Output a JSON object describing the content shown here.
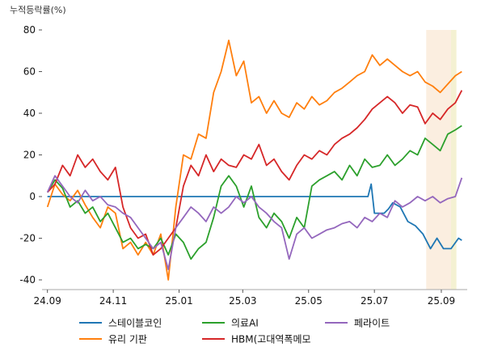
{
  "chart_data": {
    "type": "line",
    "ylabel": "누적등락률(%)",
    "ylim": [
      -45,
      80
    ],
    "yticks": [
      80,
      60,
      40,
      20,
      0,
      -20,
      -40
    ],
    "x_tick_labels": [
      "24.09",
      "24.11",
      "25.01",
      "25.03",
      "25.05",
      "25.07",
      "25.09"
    ],
    "x_tick_positions": [
      "2024-09-01",
      "2024-11-01",
      "2025-01-01",
      "2025-03-01",
      "2025-05-01",
      "2025-07-01",
      "2025-09-01"
    ],
    "xlim": [
      "2024-08-27",
      "2025-09-25"
    ],
    "shaded_regions": [
      {
        "start": "2025-08-18",
        "end": "2025-09-10",
        "color": "#fbeee0"
      },
      {
        "start": "2025-09-10",
        "end": "2025-09-15",
        "color": "#f4f1d2"
      }
    ],
    "grid": false,
    "legend_position": "bottom",
    "series": [
      {
        "name": "스테이블코인",
        "color": "#1f77b4",
        "points": [
          [
            "2024-09-01",
            0
          ],
          [
            "2024-11-01",
            0
          ],
          [
            "2025-01-01",
            0
          ],
          [
            "2025-03-01",
            0
          ],
          [
            "2025-05-01",
            0
          ],
          [
            "2025-06-25",
            0
          ],
          [
            "2025-06-28",
            6
          ],
          [
            "2025-07-01",
            -8
          ],
          [
            "2025-07-10",
            -8
          ],
          [
            "2025-07-14",
            -6
          ],
          [
            "2025-07-18",
            -3
          ],
          [
            "2025-07-25",
            -5
          ],
          [
            "2025-08-01",
            -12
          ],
          [
            "2025-08-08",
            -14
          ],
          [
            "2025-08-15",
            -18
          ],
          [
            "2025-08-22",
            -25
          ],
          [
            "2025-08-28",
            -20
          ],
          [
            "2025-09-03",
            -25
          ],
          [
            "2025-09-10",
            -25
          ],
          [
            "2025-09-17",
            -20
          ],
          [
            "2025-09-20",
            -21
          ]
        ]
      },
      {
        "name": "유리 기판",
        "color": "#ff7f0e",
        "points": [
          [
            "2024-09-01",
            -5
          ],
          [
            "2024-09-08",
            6
          ],
          [
            "2024-09-15",
            1
          ],
          [
            "2024-09-22",
            -2
          ],
          [
            "2024-09-29",
            3
          ],
          [
            "2024-10-06",
            -4
          ],
          [
            "2024-10-13",
            -10
          ],
          [
            "2024-10-20",
            -15
          ],
          [
            "2024-10-27",
            -5
          ],
          [
            "2024-11-03",
            -8
          ],
          [
            "2024-11-10",
            -25
          ],
          [
            "2024-11-17",
            -22
          ],
          [
            "2024-11-24",
            -28
          ],
          [
            "2024-12-01",
            -22
          ],
          [
            "2024-12-08",
            -28
          ],
          [
            "2024-12-15",
            -18
          ],
          [
            "2024-12-22",
            -40
          ],
          [
            "2024-12-29",
            -5
          ],
          [
            "2025-01-05",
            20
          ],
          [
            "2025-01-12",
            18
          ],
          [
            "2025-01-19",
            30
          ],
          [
            "2025-01-26",
            28
          ],
          [
            "2025-02-02",
            50
          ],
          [
            "2025-02-09",
            60
          ],
          [
            "2025-02-16",
            75
          ],
          [
            "2025-02-23",
            58
          ],
          [
            "2025-03-02",
            65
          ],
          [
            "2025-03-09",
            45
          ],
          [
            "2025-03-16",
            48
          ],
          [
            "2025-03-23",
            40
          ],
          [
            "2025-03-30",
            46
          ],
          [
            "2025-04-06",
            40
          ],
          [
            "2025-04-13",
            38
          ],
          [
            "2025-04-20",
            45
          ],
          [
            "2025-04-27",
            42
          ],
          [
            "2025-05-04",
            48
          ],
          [
            "2025-05-11",
            44
          ],
          [
            "2025-05-18",
            46
          ],
          [
            "2025-05-25",
            50
          ],
          [
            "2025-06-01",
            52
          ],
          [
            "2025-06-08",
            55
          ],
          [
            "2025-06-15",
            58
          ],
          [
            "2025-06-22",
            60
          ],
          [
            "2025-06-29",
            68
          ],
          [
            "2025-07-06",
            63
          ],
          [
            "2025-07-13",
            66
          ],
          [
            "2025-07-20",
            63
          ],
          [
            "2025-07-27",
            60
          ],
          [
            "2025-08-03",
            58
          ],
          [
            "2025-08-10",
            60
          ],
          [
            "2025-08-17",
            55
          ],
          [
            "2025-08-24",
            53
          ],
          [
            "2025-08-31",
            50
          ],
          [
            "2025-09-07",
            54
          ],
          [
            "2025-09-14",
            58
          ],
          [
            "2025-09-20",
            60
          ]
        ]
      },
      {
        "name": "의료AI",
        "color": "#2ca02c",
        "points": [
          [
            "2024-09-01",
            2
          ],
          [
            "2024-09-08",
            8
          ],
          [
            "2024-09-15",
            4
          ],
          [
            "2024-09-22",
            -5
          ],
          [
            "2024-09-29",
            -2
          ],
          [
            "2024-10-06",
            -8
          ],
          [
            "2024-10-13",
            -5
          ],
          [
            "2024-10-20",
            -12
          ],
          [
            "2024-10-27",
            -8
          ],
          [
            "2024-11-03",
            -15
          ],
          [
            "2024-11-10",
            -22
          ],
          [
            "2024-11-17",
            -20
          ],
          [
            "2024-11-24",
            -25
          ],
          [
            "2024-12-01",
            -23
          ],
          [
            "2024-12-08",
            -25
          ],
          [
            "2024-12-15",
            -20
          ],
          [
            "2024-12-22",
            -28
          ],
          [
            "2024-12-29",
            -18
          ],
          [
            "2025-01-05",
            -22
          ],
          [
            "2025-01-12",
            -30
          ],
          [
            "2025-01-19",
            -25
          ],
          [
            "2025-01-26",
            -22
          ],
          [
            "2025-02-02",
            -10
          ],
          [
            "2025-02-09",
            5
          ],
          [
            "2025-02-16",
            10
          ],
          [
            "2025-02-23",
            5
          ],
          [
            "2025-03-02",
            -5
          ],
          [
            "2025-03-09",
            5
          ],
          [
            "2025-03-16",
            -10
          ],
          [
            "2025-03-23",
            -15
          ],
          [
            "2025-03-30",
            -8
          ],
          [
            "2025-04-06",
            -12
          ],
          [
            "2025-04-13",
            -20
          ],
          [
            "2025-04-20",
            -10
          ],
          [
            "2025-04-27",
            -15
          ],
          [
            "2025-05-04",
            5
          ],
          [
            "2025-05-11",
            8
          ],
          [
            "2025-05-18",
            10
          ],
          [
            "2025-05-25",
            12
          ],
          [
            "2025-06-01",
            8
          ],
          [
            "2025-06-08",
            15
          ],
          [
            "2025-06-15",
            10
          ],
          [
            "2025-06-22",
            18
          ],
          [
            "2025-06-29",
            14
          ],
          [
            "2025-07-06",
            15
          ],
          [
            "2025-07-13",
            20
          ],
          [
            "2025-07-20",
            15
          ],
          [
            "2025-07-27",
            18
          ],
          [
            "2025-08-03",
            22
          ],
          [
            "2025-08-10",
            20
          ],
          [
            "2025-08-17",
            28
          ],
          [
            "2025-08-24",
            25
          ],
          [
            "2025-08-31",
            22
          ],
          [
            "2025-09-07",
            30
          ],
          [
            "2025-09-14",
            32
          ],
          [
            "2025-09-20",
            34
          ]
        ]
      },
      {
        "name": "HBM(고대역폭메모",
        "color": "#d62728",
        "points": [
          [
            "2024-09-01",
            2
          ],
          [
            "2024-09-08",
            6
          ],
          [
            "2024-09-15",
            15
          ],
          [
            "2024-09-22",
            10
          ],
          [
            "2024-09-29",
            20
          ],
          [
            "2024-10-06",
            14
          ],
          [
            "2024-10-13",
            18
          ],
          [
            "2024-10-20",
            12
          ],
          [
            "2024-10-27",
            8
          ],
          [
            "2024-11-03",
            14
          ],
          [
            "2024-11-10",
            -5
          ],
          [
            "2024-11-17",
            -15
          ],
          [
            "2024-11-24",
            -20
          ],
          [
            "2024-12-01",
            -18
          ],
          [
            "2024-12-08",
            -28
          ],
          [
            "2024-12-15",
            -25
          ],
          [
            "2024-12-22",
            -20
          ],
          [
            "2024-12-29",
            -15
          ],
          [
            "2025-01-05",
            5
          ],
          [
            "2025-01-12",
            15
          ],
          [
            "2025-01-19",
            10
          ],
          [
            "2025-01-26",
            20
          ],
          [
            "2025-02-02",
            12
          ],
          [
            "2025-02-09",
            18
          ],
          [
            "2025-02-16",
            15
          ],
          [
            "2025-02-23",
            14
          ],
          [
            "2025-03-02",
            20
          ],
          [
            "2025-03-09",
            18
          ],
          [
            "2025-03-16",
            25
          ],
          [
            "2025-03-23",
            15
          ],
          [
            "2025-03-30",
            18
          ],
          [
            "2025-04-06",
            12
          ],
          [
            "2025-04-13",
            8
          ],
          [
            "2025-04-20",
            15
          ],
          [
            "2025-04-27",
            20
          ],
          [
            "2025-05-04",
            18
          ],
          [
            "2025-05-11",
            22
          ],
          [
            "2025-05-18",
            20
          ],
          [
            "2025-05-25",
            25
          ],
          [
            "2025-06-01",
            28
          ],
          [
            "2025-06-08",
            30
          ],
          [
            "2025-06-15",
            33
          ],
          [
            "2025-06-22",
            37
          ],
          [
            "2025-06-29",
            42
          ],
          [
            "2025-07-06",
            45
          ],
          [
            "2025-07-13",
            48
          ],
          [
            "2025-07-20",
            45
          ],
          [
            "2025-07-27",
            40
          ],
          [
            "2025-08-03",
            44
          ],
          [
            "2025-08-10",
            43
          ],
          [
            "2025-08-17",
            35
          ],
          [
            "2025-08-24",
            40
          ],
          [
            "2025-08-31",
            37
          ],
          [
            "2025-09-07",
            42
          ],
          [
            "2025-09-14",
            45
          ],
          [
            "2025-09-20",
            51
          ]
        ]
      },
      {
        "name": "페라이트",
        "color": "#9467bd",
        "points": [
          [
            "2024-09-01",
            2
          ],
          [
            "2024-09-08",
            10
          ],
          [
            "2024-09-15",
            5
          ],
          [
            "2024-09-22",
            0
          ],
          [
            "2024-09-29",
            -3
          ],
          [
            "2024-10-06",
            3
          ],
          [
            "2024-10-13",
            -2
          ],
          [
            "2024-10-20",
            0
          ],
          [
            "2024-10-27",
            -4
          ],
          [
            "2024-11-03",
            -5
          ],
          [
            "2024-11-10",
            -8
          ],
          [
            "2024-11-17",
            -10
          ],
          [
            "2024-11-24",
            -15
          ],
          [
            "2024-12-01",
            -20
          ],
          [
            "2024-12-08",
            -25
          ],
          [
            "2024-12-15",
            -22
          ],
          [
            "2024-12-22",
            -35
          ],
          [
            "2024-12-29",
            -15
          ],
          [
            "2025-01-05",
            -10
          ],
          [
            "2025-01-12",
            -5
          ],
          [
            "2025-01-19",
            -8
          ],
          [
            "2025-01-26",
            -12
          ],
          [
            "2025-02-02",
            -5
          ],
          [
            "2025-02-09",
            -8
          ],
          [
            "2025-02-16",
            -5
          ],
          [
            "2025-02-23",
            0
          ],
          [
            "2025-03-02",
            -3
          ],
          [
            "2025-03-09",
            0
          ],
          [
            "2025-03-16",
            -5
          ],
          [
            "2025-03-23",
            -8
          ],
          [
            "2025-03-30",
            -12
          ],
          [
            "2025-04-06",
            -15
          ],
          [
            "2025-04-13",
            -30
          ],
          [
            "2025-04-20",
            -18
          ],
          [
            "2025-04-27",
            -15
          ],
          [
            "2025-05-04",
            -20
          ],
          [
            "2025-05-11",
            -18
          ],
          [
            "2025-05-18",
            -16
          ],
          [
            "2025-05-25",
            -15
          ],
          [
            "2025-06-01",
            -13
          ],
          [
            "2025-06-08",
            -12
          ],
          [
            "2025-06-15",
            -15
          ],
          [
            "2025-06-22",
            -10
          ],
          [
            "2025-06-29",
            -12
          ],
          [
            "2025-07-06",
            -8
          ],
          [
            "2025-07-13",
            -10
          ],
          [
            "2025-07-20",
            -2
          ],
          [
            "2025-07-27",
            -5
          ],
          [
            "2025-08-03",
            -3
          ],
          [
            "2025-08-10",
            0
          ],
          [
            "2025-08-17",
            -2
          ],
          [
            "2025-08-24",
            0
          ],
          [
            "2025-08-31",
            -3
          ],
          [
            "2025-09-07",
            -1
          ],
          [
            "2025-09-14",
            0
          ],
          [
            "2025-09-20",
            9
          ]
        ]
      }
    ]
  }
}
